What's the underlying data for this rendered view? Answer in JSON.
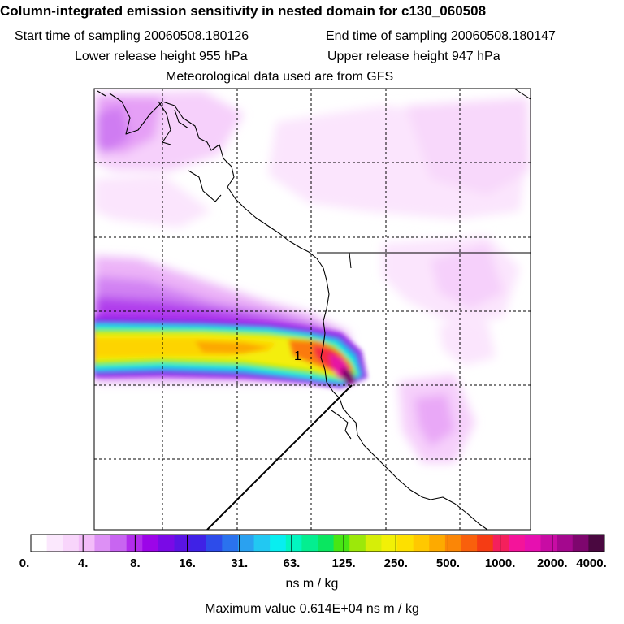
{
  "header": {
    "title": "Column-integrated emission sensitivity in nested domain for c130_060508",
    "start_label": "Start time of sampling 20060508.180126",
    "end_label": "End time of sampling 20060508.180147",
    "lower_label": "Lower release height  955 hPa",
    "upper_label": "Upper release height  947 hPa",
    "met_label": "Meteorological data used are from GFS"
  },
  "map": {
    "release_marker": "1",
    "icons": [
      "coastline",
      "border-line",
      "grid-line",
      "plume",
      "release-track"
    ]
  },
  "colorbar": {
    "labels": [
      "0.",
      "4.",
      "8.",
      "16.",
      "31.",
      "63.",
      "125.",
      "250.",
      "500.",
      "1000.",
      "2000.",
      "4000."
    ],
    "colors": [
      "#ffffff",
      "#fbe8fd",
      "#f8d5fb",
      "#f3bcf9",
      "#dd90f5",
      "#c865f1",
      "#b22cec",
      "#9c05e8",
      "#7a0ae6",
      "#5a14e4",
      "#3f22e6",
      "#2d4cea",
      "#2a72ee",
      "#2aa1f0",
      "#22c8f2",
      "#08eef0",
      "#02f5c0",
      "#04ee90",
      "#0ae660",
      "#48e614",
      "#9ce80a",
      "#d6ee08",
      "#f2f006",
      "#fde000",
      "#ffc800",
      "#fdaa00",
      "#fb8606",
      "#f9600c",
      "#f53c14",
      "#f4205c",
      "#f4149a",
      "#e610b0",
      "#c80ca4",
      "#a4088e",
      "#7e066e",
      "#4a0840"
    ],
    "units": "ns m / kg"
  },
  "footer": {
    "max_value_label": "Maximum value  0.614E+04 ns m / kg"
  }
}
